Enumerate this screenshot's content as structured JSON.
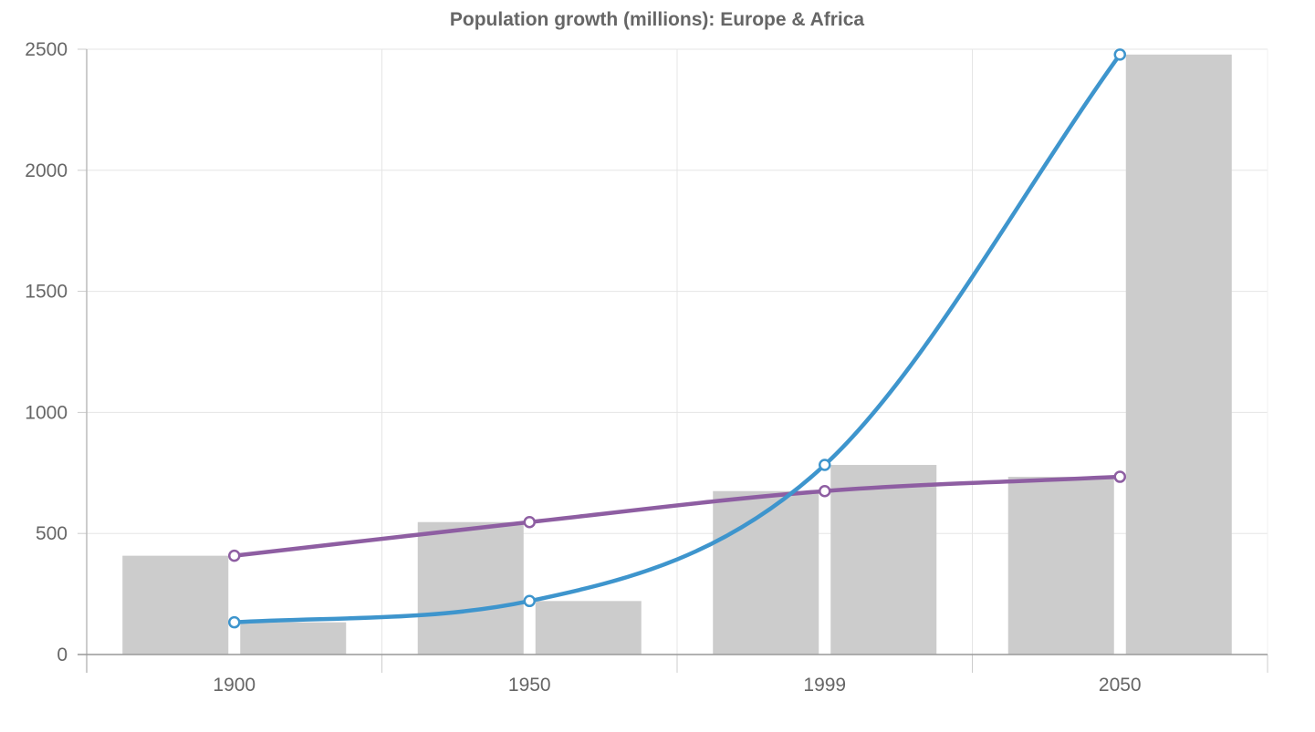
{
  "chart_data": {
    "type": "bar",
    "title": "Population growth (millions): Europe & Africa",
    "categories": [
      "1900",
      "1950",
      "1999",
      "2050"
    ],
    "ylim": [
      0,
      2500
    ],
    "yticks": [
      0,
      500,
      1000,
      1500,
      2000,
      2500
    ],
    "grid": true,
    "legend": "none",
    "bar_series": [
      {
        "values": [
          408,
          547,
          675,
          734
        ],
        "color": "#cccccc"
      },
      {
        "values": [
          133,
          221,
          783,
          2478
        ],
        "color": "#cccccc"
      }
    ],
    "line_series": [
      {
        "values": [
          408,
          547,
          675,
          734
        ],
        "color": "#8e5ea2"
      },
      {
        "values": [
          133,
          221,
          783,
          2478
        ],
        "color": "#3e95cd"
      }
    ]
  }
}
